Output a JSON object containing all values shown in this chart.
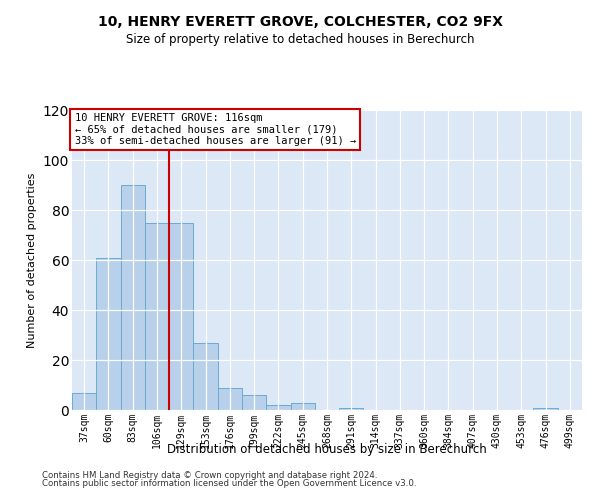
{
  "title": "10, HENRY EVERETT GROVE, COLCHESTER, CO2 9FX",
  "subtitle": "Size of property relative to detached houses in Berechurch",
  "xlabel": "Distribution of detached houses by size in Berechurch",
  "ylabel": "Number of detached properties",
  "categories": [
    "37sqm",
    "60sqm",
    "83sqm",
    "106sqm",
    "129sqm",
    "153sqm",
    "176sqm",
    "199sqm",
    "222sqm",
    "245sqm",
    "268sqm",
    "291sqm",
    "314sqm",
    "337sqm",
    "360sqm",
    "384sqm",
    "407sqm",
    "430sqm",
    "453sqm",
    "476sqm",
    "499sqm"
  ],
  "values": [
    7,
    61,
    90,
    75,
    75,
    27,
    9,
    6,
    2,
    3,
    0,
    1,
    0,
    0,
    0,
    0,
    0,
    0,
    0,
    1,
    0
  ],
  "bar_color": "#b8d0ea",
  "bar_edge_color": "#6aaad4",
  "vline_x": 3.5,
  "vline_color": "#cc0000",
  "annotation_text": "10 HENRY EVERETT GROVE: 116sqm\n← 65% of detached houses are smaller (179)\n33% of semi-detached houses are larger (91) →",
  "annotation_box_color": "#ffffff",
  "annotation_box_edge": "#cc0000",
  "ylim": [
    0,
    120
  ],
  "yticks": [
    0,
    20,
    40,
    60,
    80,
    100,
    120
  ],
  "background_color": "#dce8f5",
  "footer1": "Contains HM Land Registry data © Crown copyright and database right 2024.",
  "footer2": "Contains public sector information licensed under the Open Government Licence v3.0."
}
